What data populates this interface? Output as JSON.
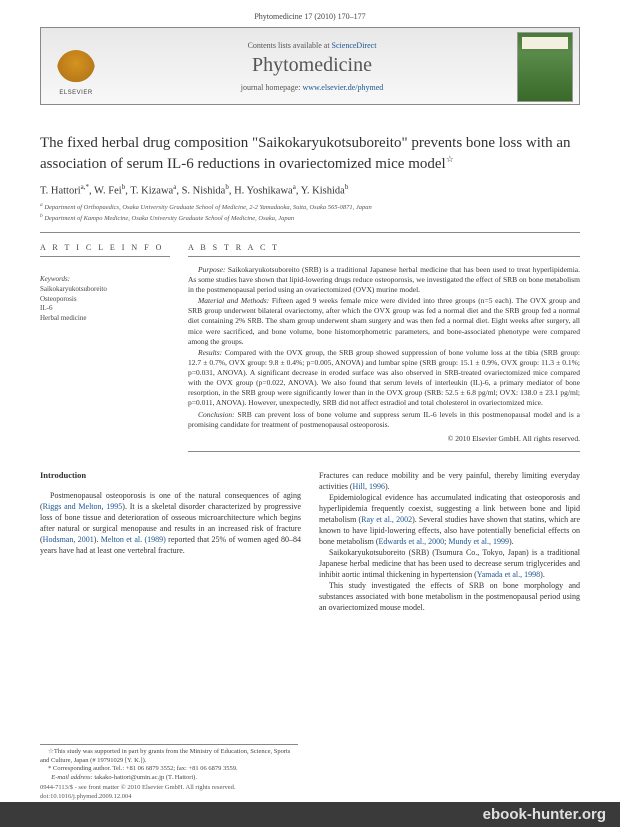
{
  "page_header": "Phytomedicine 17 (2010) 170–177",
  "banner": {
    "publisher": "ELSEVIER",
    "contents_prefix": "Contents lists available at ",
    "contents_link": "ScienceDirect",
    "journal_name": "Phytomedicine",
    "homepage_prefix": "journal homepage: ",
    "homepage_link": "www.elsevier.de/phymed"
  },
  "article": {
    "title": "The fixed herbal drug composition \"Saikokaryukotsuboreito\" prevents bone loss with an association of serum IL-6 reductions in ovariectomized mice model",
    "star": "☆",
    "authors_html": "T. Hattori<sup>a,*</sup>, W. Fei<sup>b</sup>, T. Kizawa<sup>a</sup>, S. Nishida<sup>b</sup>, H. Yoshikawa<sup>a</sup>, Y. Kishida<sup>b</sup>",
    "affiliations": [
      "a Department of Orthopaedics, Osaka University Graduate School of Medicine, 2-2 Yamadaoka, Suita, Osaka 565-0871, Japan",
      "b Department of Kampo Medicine, Osaka University Graduate School of Medicine, Osaka, Japan"
    ]
  },
  "info": {
    "heading": "A R T I C L E   I N F O",
    "keywords_label": "Keywords:",
    "keywords": [
      "Saikokaryukotsuboreito",
      "Osteoporosis",
      "IL-6",
      "Herbal medicine"
    ]
  },
  "abstract": {
    "heading": "A B S T R A C T",
    "purpose": "Purpose: Saikokaryukotsuboreito (SRB) is a traditional Japanese herbal medicine that has been used to treat hyperlipidemia. As some studies have shown that lipid-lowering drugs reduce osteoporosis, we investigated the effect of SRB on bone metabolism in the postmenopausal period using an ovariectomized (OVX) murine model.",
    "methods": "Material and Methods: Fifteen aged 9 weeks female mice were divided into three groups (n=5 each). The OVX group and SRB group underwent bilateral ovariectomy, after which the OVX group was fed a normal diet and the SRB group fed a normal diet containing 2% SRB. The sham group underwent sham surgery and was then fed a normal diet. Eight weeks after surgery, all mice were sacrificed, and bone volume, bone histomorphometric parameters, and bone-associated phenotype were compared among the groups.",
    "results": "Results: Compared with the OVX group, the SRB group showed suppression of bone volume loss at the tibia (SRB group: 12.7 ± 0.7%, OVX group: 9.8 ± 0.4%; p=0.005, ANOVA) and lumbar spine (SRB group: 15.1 ± 0.9%, OVX group: 11.3 ± 0.1%; p=0.031, ANOVA). A significant decrease in eroded surface was also observed in SRB-treated ovariectomized mice compared with the OVX group (p=0.022, ANOVA). We also found that serum levels of interleukin (IL)-6, a primary mediator of bone resorption, in the SRB group were significantly lower than in the OVX group (SRB: 52.5 ± 6.8 pg/ml; OVX: 138.0 ± 23.1 pg/ml; p=0.011, ANOVA). However, unexpectedly, SRB did not affect estradiol and total cholesterol in ovariectomized mice.",
    "conclusion": "Conclusion: SRB can prevent loss of bone volume and suppress serum IL-6 levels in this postmenopausal model and is a promising candidate for treatment of postmenopausal osteoporosis.",
    "copyright": "© 2010 Elsevier GmbH. All rights reserved."
  },
  "body": {
    "introduction_heading": "Introduction",
    "col1_p1_a": "Postmenopausal osteoporosis is one of the natural consequences of aging (",
    "col1_p1_link1": "Riggs and Melton, 1995",
    "col1_p1_b": "). It is a skeletal disorder characterized by progressive loss of bone tissue and deterioration of osseous microarchitecture which begins after natural or surgical menopause and results in an increased risk of fracture (",
    "col1_p1_link2": "Hodsman, 2001",
    "col1_p1_c": "). ",
    "col1_p1_link3": "Melton et al. (1989)",
    "col1_p1_d": " reported that 25% of women aged 80–84 years have had at least one vertebral fracture.",
    "col2_p1_a": "Fractures can reduce mobility and be very painful, thereby limiting everyday activities (",
    "col2_p1_link1": "Hill, 1996",
    "col2_p1_b": ").",
    "col2_p2_a": "Epidemiological evidence has accumulated indicating that osteoporosis and hyperlipidemia frequently coexist, suggesting a link between bone and lipid metabolism (",
    "col2_p2_link1": "Ray et al., 2002",
    "col2_p2_b": "). Several studies have shown that statins, which are known to have lipid-lowering effects, also have potentially beneficial effects on bone metabolism (",
    "col2_p2_link2": "Edwards et al., 2000",
    "col2_p2_c": "; ",
    "col2_p2_link3": "Mundy et al., 1999",
    "col2_p2_d": ").",
    "col2_p3_a": "Saikokaryukotsuboreito (SRB) (Tsumura Co., Tokyo, Japan) is a traditional Japanese herbal medicine that has been used to decrease serum triglycerides and inhibit aortic intimal thickening in hypertension (",
    "col2_p3_link1": "Yamada et al., 1998",
    "col2_p3_b": ").",
    "col2_p4": "This study investigated the effects of SRB on bone morphology and substances associated with bone metabolism in the postmenopausal period using an ovariectomized mouse model."
  },
  "footnotes": {
    "f1": "☆This study was supported in part by grants from the Ministry of Education, Science, Sports and Culture, Japan (# 19791029 [Y. K.]).",
    "f2": "* Corresponding author. Tel.: +81 06 6879 3552; fax: +81 06 6879 3559.",
    "f3": "E-mail address: takako-hattori@umin.ac.jp (T. Hattori)."
  },
  "bottom": {
    "l1": "0944-7113/$ - see front matter © 2010 Elsevier GmbH. All rights reserved.",
    "l2": "doi:10.1016/j.phymed.2009.12.004"
  },
  "watermark": "ebook-hunter.org"
}
